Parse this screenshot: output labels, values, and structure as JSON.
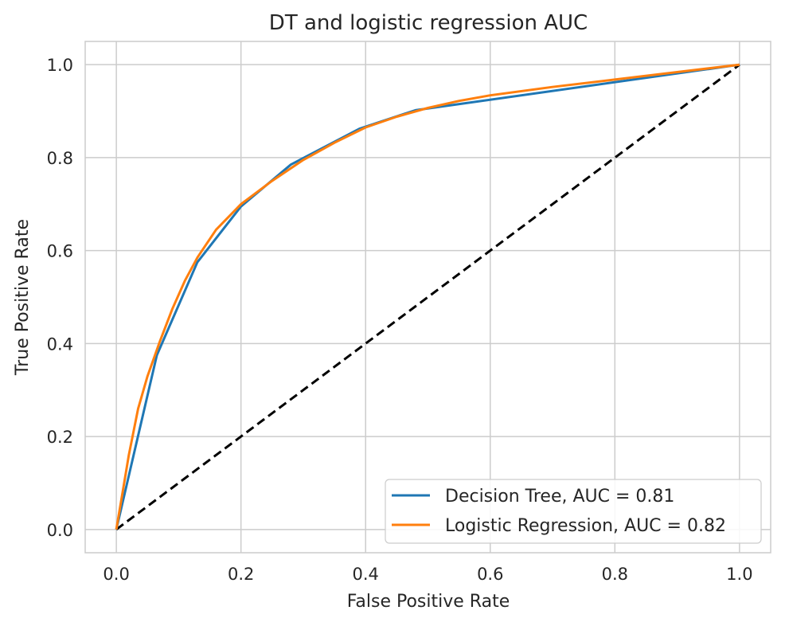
{
  "chart_data": {
    "type": "line",
    "title": "DT and logistic regression AUC",
    "xlabel": "False Positive Rate",
    "ylabel": "True Positive Rate",
    "xlim": [
      -0.05,
      1.05
    ],
    "ylim": [
      -0.05,
      1.05
    ],
    "xticks": [
      "0.0",
      "0.2",
      "0.4",
      "0.6",
      "0.8",
      "1.0"
    ],
    "yticks": [
      "0.0",
      "0.2",
      "0.4",
      "0.6",
      "0.8",
      "1.0"
    ],
    "grid": true,
    "legend_position": "lower-right",
    "series": [
      {
        "name": "Decision Tree, AUC = 0.81",
        "color": "#1f77b4",
        "x": [
          0.0,
          0.065,
          0.13,
          0.2,
          0.28,
          0.39,
          0.48,
          1.0
        ],
        "y": [
          0.0,
          0.375,
          0.575,
          0.695,
          0.785,
          0.862,
          0.902,
          1.0
        ]
      },
      {
        "name": "Logistic Regression, AUC = 0.82",
        "color": "#ff7f0e",
        "x": [
          0.0,
          0.01,
          0.02,
          0.035,
          0.05,
          0.07,
          0.09,
          0.11,
          0.13,
          0.16,
          0.2,
          0.25,
          0.3,
          0.35,
          0.4,
          0.45,
          0.5,
          0.55,
          0.6,
          0.7,
          0.8,
          0.9,
          1.0
        ],
        "y": [
          0.0,
          0.08,
          0.16,
          0.26,
          0.33,
          0.405,
          0.475,
          0.535,
          0.585,
          0.645,
          0.7,
          0.75,
          0.795,
          0.832,
          0.865,
          0.888,
          0.907,
          0.922,
          0.934,
          0.952,
          0.968,
          0.984,
          1.0
        ]
      },
      {
        "color": "#000000",
        "dashed": true,
        "x": [
          0.0,
          1.0
        ],
        "y": [
          0.0,
          1.0
        ]
      }
    ]
  }
}
